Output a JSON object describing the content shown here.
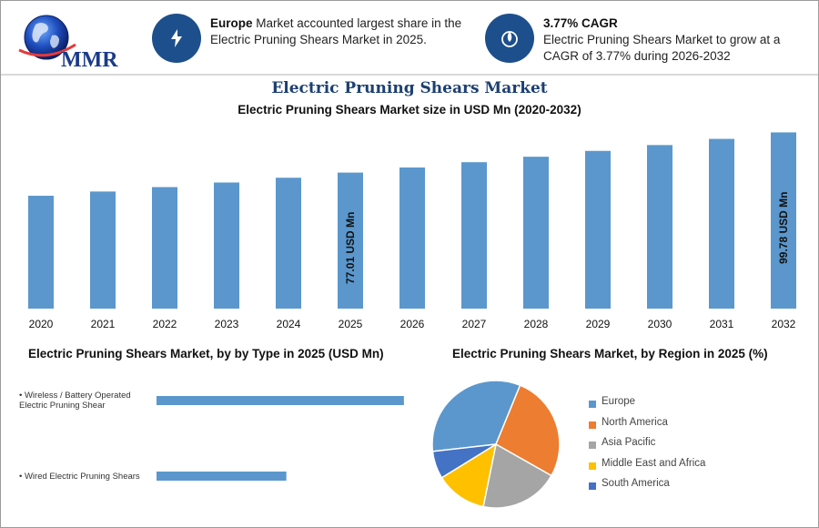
{
  "header": {
    "logo_text": "MMR",
    "info_left": {
      "bold": "Europe",
      "text": " Market accounted largest share in the Electric Pruning Shears Market in 2025."
    },
    "info_right": {
      "bold": "3.77% CAGR",
      "text": "Electric Pruning Shears Market to grow at a CAGR of 3.77% during 2026-2032"
    }
  },
  "titles": {
    "main": "Electric Pruning Shears Market",
    "sub": "Electric Pruning Shears Market size in USD Mn (2020-2032)",
    "type": "Electric Pruning Shears Market, by by Type in 2025 (USD Mn)",
    "region": "Electric Pruning Shears Market, by Region in 2025 (%)"
  },
  "colors": {
    "bar": "#5b97cc",
    "navy": "#1d4f8c",
    "title": "#1c3f72"
  },
  "chart_data": [
    {
      "type": "bar",
      "title": "Electric Pruning Shears Market size in USD Mn (2020-2032)",
      "categories": [
        "2020",
        "2021",
        "2022",
        "2023",
        "2024",
        "2025",
        "2026",
        "2027",
        "2028",
        "2029",
        "2030",
        "2031",
        "2032"
      ],
      "values": [
        63.9,
        66.3,
        68.8,
        71.4,
        74.1,
        77.01,
        79.9,
        82.9,
        86.0,
        89.3,
        92.6,
        96.1,
        99.78
      ],
      "data_labels": {
        "5": "77.01 USD Mn",
        "12": "99.78 USD Mn"
      },
      "xlabel": "",
      "ylabel": "USD Mn",
      "ylim": [
        0,
        100
      ],
      "grid": false
    },
    {
      "type": "bar",
      "orientation": "horizontal",
      "title": "Electric Pruning Shears Market, by by Type in 2025 (USD Mn)",
      "categories": [
        "Wireless / Battery Operated Electric Pruning Shear",
        "Wired Electric Pruning Shears"
      ],
      "category_lines": [
        [
          "• Wireless / Battery Operated",
          "Electric Pruning Shear"
        ],
        [
          "• Wired Electric Pruning Shears"
        ]
      ],
      "values": [
        50.5,
        26.5
      ],
      "xlim": [
        0,
        60
      ]
    },
    {
      "type": "pie",
      "title": "Electric Pruning Shears Market, by Region in 2025 (%)",
      "labels": [
        "Europe",
        "North America",
        "Asia Pacific",
        "Middle East and Africa",
        "South America"
      ],
      "values": [
        33,
        27,
        20,
        13,
        7
      ],
      "colors": [
        "#5b97cc",
        "#ed7d31",
        "#a5a5a5",
        "#ffc000",
        "#4472c4"
      ]
    }
  ]
}
